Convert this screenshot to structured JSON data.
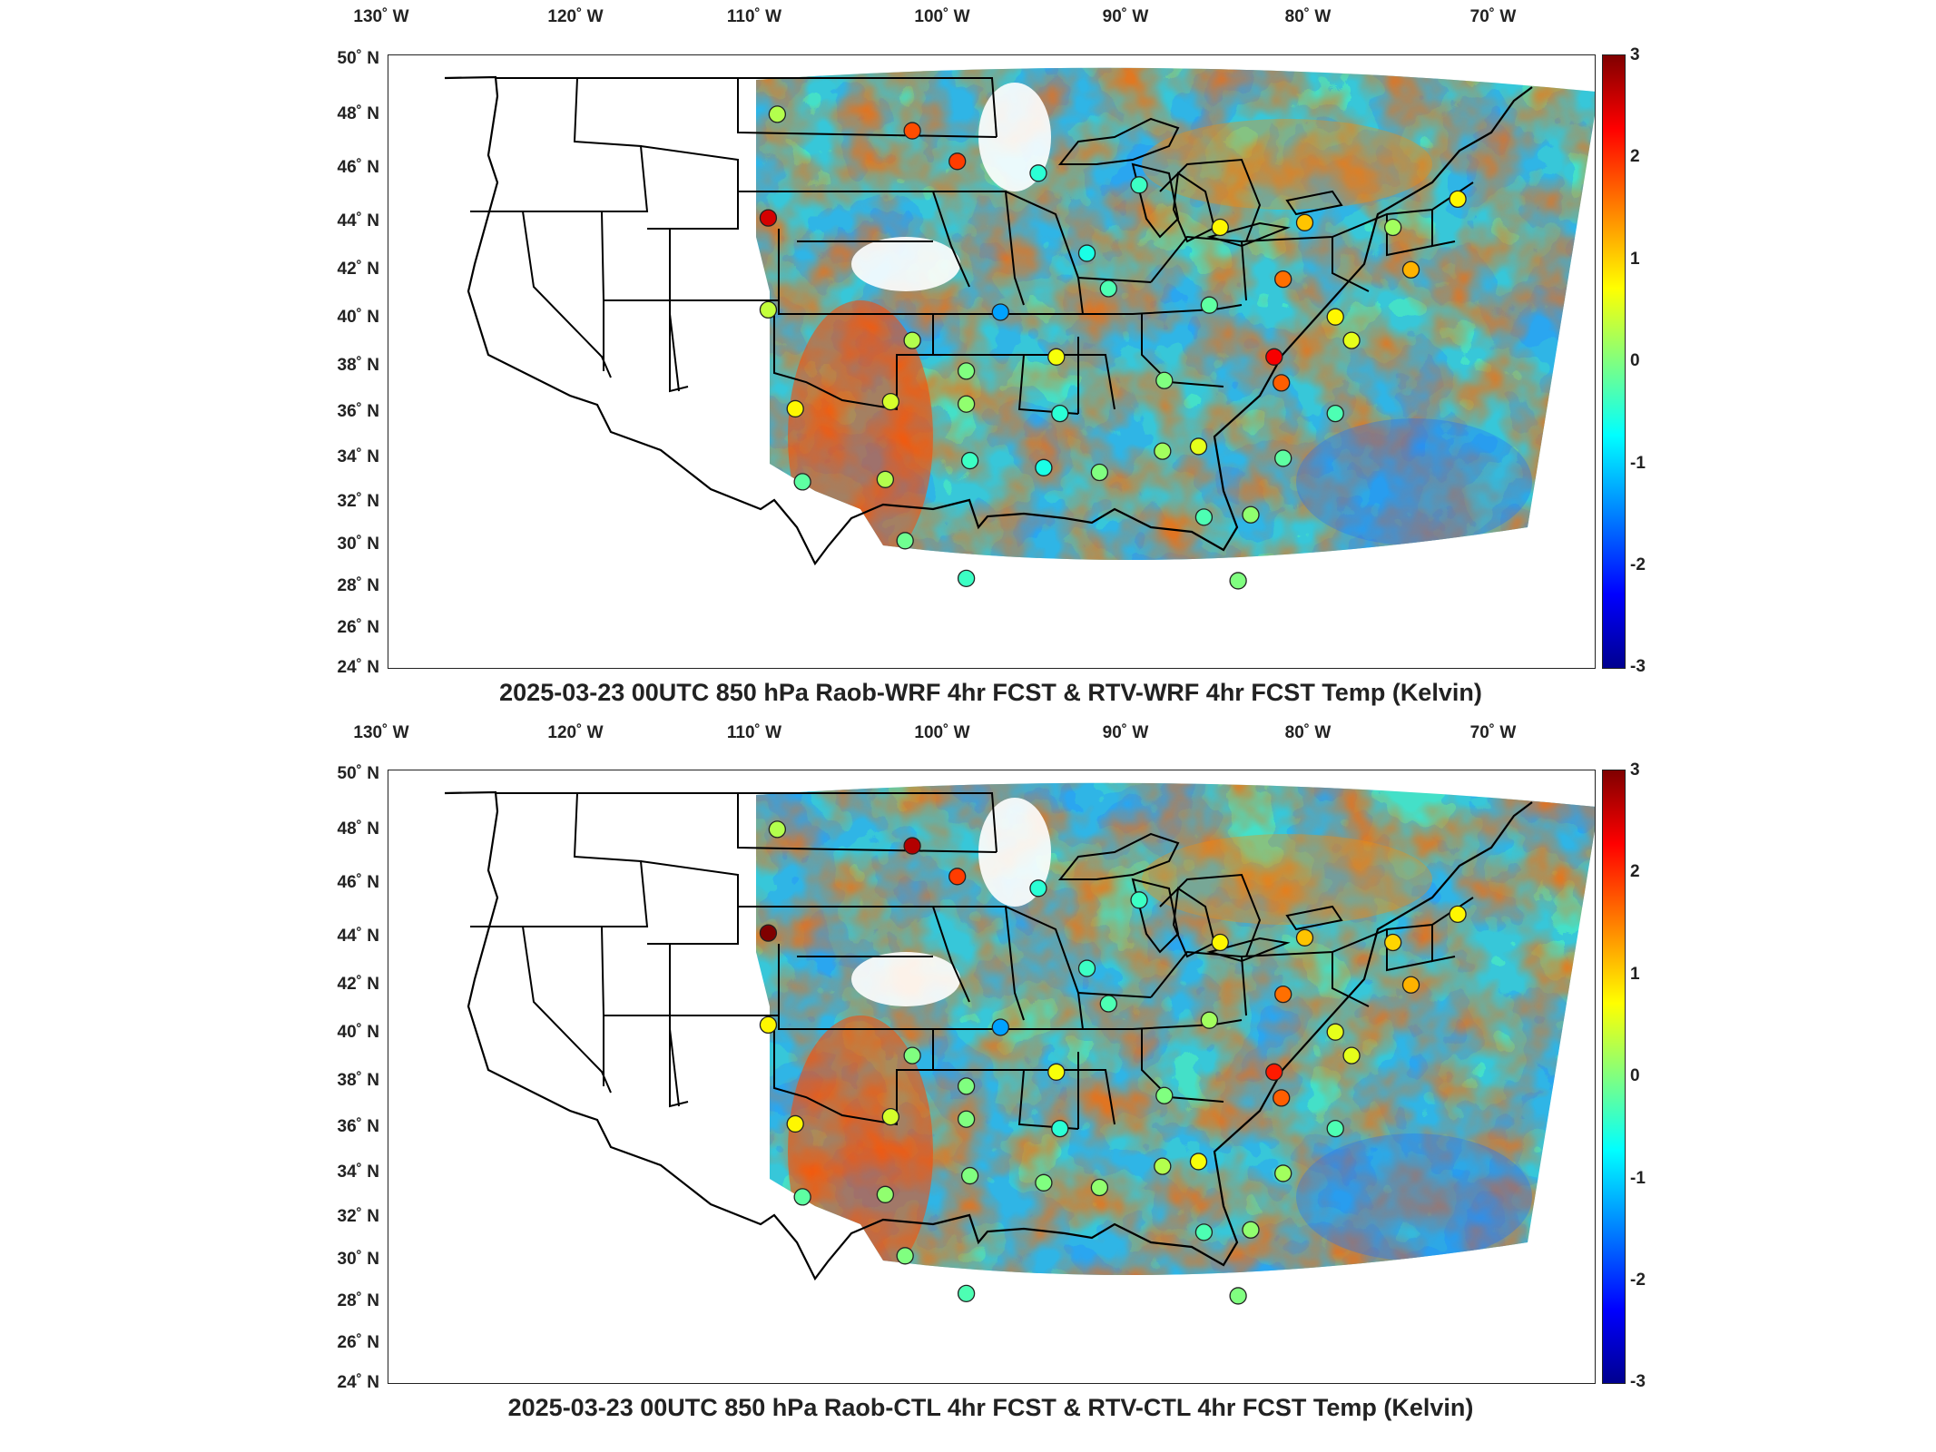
{
  "panels": [
    {
      "title": "2025-03-23 00UTC 850 hPa Raob-WRF 4hr FCST & RTV-WRF 4hr FCST Temp (Kelvin)",
      "stations": [
        {
          "lon": -108,
          "lat": 47.5,
          "value": 0.3
        },
        {
          "lon": -100.5,
          "lat": 46.8,
          "value": 1.8
        },
        {
          "lon": -98,
          "lat": 45.5,
          "value": 1.9
        },
        {
          "lon": -93.5,
          "lat": 45,
          "value": -0.5
        },
        {
          "lon": -108.5,
          "lat": 43.1,
          "value": 2.5
        },
        {
          "lon": -108.5,
          "lat": 39.2,
          "value": 0.4
        },
        {
          "lon": -107,
          "lat": 35,
          "value": 0.8
        },
        {
          "lon": -101.7,
          "lat": 35.3,
          "value": 0.5
        },
        {
          "lon": -100.5,
          "lat": 37.9,
          "value": 0.3
        },
        {
          "lon": -97.5,
          "lat": 36.6,
          "value": 0
        },
        {
          "lon": -95.6,
          "lat": 39.1,
          "value": -1.3
        },
        {
          "lon": -92.5,
          "lat": 37.2,
          "value": 0.7
        },
        {
          "lon": -97.5,
          "lat": 35.2,
          "value": 0.1
        },
        {
          "lon": -97.3,
          "lat": 32.8,
          "value": -0.4
        },
        {
          "lon": -102,
          "lat": 32,
          "value": 0.3
        },
        {
          "lon": -106.6,
          "lat": 31.9,
          "value": -0.2
        },
        {
          "lon": -100.9,
          "lat": 29.4,
          "value": -0.1
        },
        {
          "lon": -97.5,
          "lat": 27.8,
          "value": -0.4
        },
        {
          "lon": -93.2,
          "lat": 32.5,
          "value": -0.6
        },
        {
          "lon": -92.3,
          "lat": 34.8,
          "value": -0.5
        },
        {
          "lon": -90.1,
          "lat": 32.3,
          "value": 0
        },
        {
          "lon": -86.6,
          "lat": 33.2,
          "value": 0.2
        },
        {
          "lon": -84.6,
          "lat": 33.4,
          "value": 0.6
        },
        {
          "lon": -86.5,
          "lat": 36.2,
          "value": 0
        },
        {
          "lon": -84,
          "lat": 39.4,
          "value": -0.2
        },
        {
          "lon": -89.6,
          "lat": 40.1,
          "value": -0.3
        },
        {
          "lon": -90.8,
          "lat": 41.6,
          "value": -0.6
        },
        {
          "lon": -87.9,
          "lat": 44.5,
          "value": -0.4
        },
        {
          "lon": -83.4,
          "lat": 42.7,
          "value": 0.8
        },
        {
          "lon": -79.9,
          "lat": 40.5,
          "value": 1.6
        },
        {
          "lon": -80.4,
          "lat": 37.2,
          "value": 2.3
        },
        {
          "lon": -80,
          "lat": 36.1,
          "value": 1.7
        },
        {
          "lon": -77,
          "lat": 38.9,
          "value": 0.8
        },
        {
          "lon": -76.1,
          "lat": 37.9,
          "value": 0.6
        },
        {
          "lon": -77,
          "lat": 34.8,
          "value": -0.3
        },
        {
          "lon": -79.9,
          "lat": 32.9,
          "value": -0.2
        },
        {
          "lon": -81.7,
          "lat": 30.5,
          "value": 0.1
        },
        {
          "lon": -82.4,
          "lat": 27.7,
          "value": 0
        },
        {
          "lon": -84.3,
          "lat": 30.4,
          "value": -0.3
        },
        {
          "lon": -78.7,
          "lat": 42.9,
          "value": 1.1
        },
        {
          "lon": -73.8,
          "lat": 42.7,
          "value": 0.2
        },
        {
          "lon": -72.8,
          "lat": 40.9,
          "value": 1.2
        },
        {
          "lon": -70.2,
          "lat": 43.9,
          "value": 0.8
        }
      ]
    },
    {
      "title": "2025-03-23 00UTC 850 hPa Raob-CTL 4hr FCST & RTV-CTL 4hr FCST Temp (Kelvin)",
      "stations": [
        {
          "lon": -108,
          "lat": 47.5,
          "value": 0.3
        },
        {
          "lon": -100.5,
          "lat": 46.8,
          "value": 2.7
        },
        {
          "lon": -98,
          "lat": 45.5,
          "value": 1.9
        },
        {
          "lon": -93.5,
          "lat": 45,
          "value": -0.5
        },
        {
          "lon": -108.5,
          "lat": 43.1,
          "value": 3
        },
        {
          "lon": -108.5,
          "lat": 39.2,
          "value": 0.8
        },
        {
          "lon": -107,
          "lat": 35,
          "value": 0.8
        },
        {
          "lon": -101.7,
          "lat": 35.3,
          "value": 0.5
        },
        {
          "lon": -100.5,
          "lat": 37.9,
          "value": 0
        },
        {
          "lon": -97.5,
          "lat": 36.6,
          "value": 0
        },
        {
          "lon": -95.6,
          "lat": 39.1,
          "value": -1.3
        },
        {
          "lon": -92.5,
          "lat": 37.2,
          "value": 0.7
        },
        {
          "lon": -97.5,
          "lat": 35.2,
          "value": 0
        },
        {
          "lon": -97.3,
          "lat": 32.8,
          "value": 0
        },
        {
          "lon": -102,
          "lat": 32,
          "value": 0.1
        },
        {
          "lon": -106.6,
          "lat": 31.9,
          "value": -0.2
        },
        {
          "lon": -100.9,
          "lat": 29.4,
          "value": 0
        },
        {
          "lon": -97.5,
          "lat": 27.8,
          "value": -0.3
        },
        {
          "lon": -93.2,
          "lat": 32.5,
          "value": 0
        },
        {
          "lon": -92.3,
          "lat": 34.8,
          "value": -0.5
        },
        {
          "lon": -90.1,
          "lat": 32.3,
          "value": 0.1
        },
        {
          "lon": -86.6,
          "lat": 33.2,
          "value": 0.3
        },
        {
          "lon": -84.6,
          "lat": 33.4,
          "value": 0.7
        },
        {
          "lon": -86.5,
          "lat": 36.2,
          "value": 0
        },
        {
          "lon": -84,
          "lat": 39.4,
          "value": 0.2
        },
        {
          "lon": -89.6,
          "lat": 40.1,
          "value": -0.3
        },
        {
          "lon": -90.8,
          "lat": 41.6,
          "value": -0.4
        },
        {
          "lon": -87.9,
          "lat": 44.5,
          "value": -0.4
        },
        {
          "lon": -83.4,
          "lat": 42.7,
          "value": 0.8
        },
        {
          "lon": -79.9,
          "lat": 40.5,
          "value": 1.6
        },
        {
          "lon": -80.4,
          "lat": 37.2,
          "value": 2.1
        },
        {
          "lon": -80,
          "lat": 36.1,
          "value": 1.7
        },
        {
          "lon": -77,
          "lat": 38.9,
          "value": 0.6
        },
        {
          "lon": -76.1,
          "lat": 37.9,
          "value": 0.6
        },
        {
          "lon": -77,
          "lat": 34.8,
          "value": -0.3
        },
        {
          "lon": -79.9,
          "lat": 32.9,
          "value": 0.2
        },
        {
          "lon": -81.7,
          "lat": 30.5,
          "value": 0.1
        },
        {
          "lon": -82.4,
          "lat": 27.7,
          "value": 0
        },
        {
          "lon": -84.3,
          "lat": 30.4,
          "value": -0.3
        },
        {
          "lon": -78.7,
          "lat": 42.9,
          "value": 1.1
        },
        {
          "lon": -73.8,
          "lat": 42.7,
          "value": 1
        },
        {
          "lon": -72.8,
          "lat": 40.9,
          "value": 1.2
        },
        {
          "lon": -70.2,
          "lat": 43.9,
          "value": 0.8
        }
      ]
    }
  ],
  "lon_labels": [
    "130˚ W",
    "120˚ W",
    "110˚ W",
    "100˚ W",
    "90˚ W",
    "80˚ W",
    "70˚ W"
  ],
  "lat_labels": [
    "50˚ N",
    "48˚ N",
    "46˚ N",
    "44˚ N",
    "42˚ N",
    "40˚ N",
    "38˚ N",
    "36˚ N",
    "34˚ N",
    "32˚ N",
    "30˚ N",
    "28˚ N",
    "26˚ N",
    "24˚ N"
  ],
  "colorbar_ticks": [
    "3",
    "2",
    "1",
    "0",
    "-1",
    "-2",
    "-3"
  ],
  "colorbar_range": [
    -3,
    3
  ],
  "colormap": [
    "#00008f",
    "#0000ff",
    "#0080ff",
    "#00ffff",
    "#80ff80",
    "#ffff00",
    "#ff8000",
    "#ff0000",
    "#800000"
  ]
}
